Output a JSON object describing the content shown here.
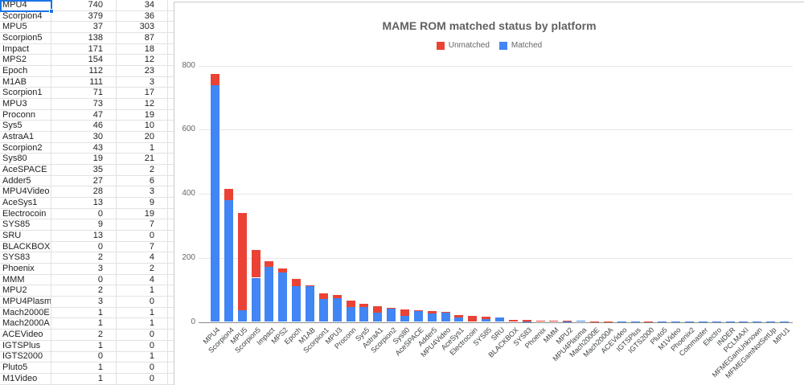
{
  "sheet": {
    "active_cell": "MPU4",
    "rows": [
      [
        "MPU4",
        740,
        34
      ],
      [
        "Scorpion4",
        379,
        36
      ],
      [
        "MPU5",
        37,
        303
      ],
      [
        "Scorpion5",
        138,
        87
      ],
      [
        "Impact",
        171,
        18
      ],
      [
        "MPS2",
        154,
        12
      ],
      [
        "Epoch",
        112,
        23
      ],
      [
        "M1AB",
        111,
        3
      ],
      [
        "Scorpion1",
        71,
        17
      ],
      [
        "MPU3",
        73,
        12
      ],
      [
        "Proconn",
        47,
        19
      ],
      [
        "Sys5",
        46,
        10
      ],
      [
        "AstraA1",
        30,
        20
      ],
      [
        "Scorpion2",
        43,
        1
      ],
      [
        "Sys80",
        19,
        21
      ],
      [
        "AceSPACE",
        35,
        2
      ],
      [
        "Adder5",
        27,
        6
      ],
      [
        "MPU4Video",
        28,
        3
      ],
      [
        "AceSys1",
        13,
        9
      ],
      [
        "Electrocoin",
        0,
        19
      ],
      [
        "SYS85",
        9,
        7
      ],
      [
        "SRU",
        13,
        0
      ],
      [
        "BLACKBOX",
        0,
        7
      ],
      [
        "SYS83",
        2,
        4
      ],
      [
        "Phoenix",
        3,
        2
      ],
      [
        "MMM",
        0,
        4
      ],
      [
        "MPU2",
        2,
        1
      ],
      [
        "MPU4Plasma",
        3,
        0
      ],
      [
        "Mach2000E",
        1,
        1
      ],
      [
        "Mach2000A",
        1,
        1
      ],
      [
        "ACEVideo",
        2,
        0
      ],
      [
        "IGTSPlus",
        1,
        0
      ],
      [
        "IGTS2000",
        0,
        1
      ],
      [
        "Pluto5",
        1,
        0
      ],
      [
        "M1Video",
        1,
        0
      ]
    ]
  },
  "chart_data": {
    "type": "bar",
    "stacked": true,
    "title": "MAME ROM matched status by platform",
    "legend_position": "top",
    "grid": true,
    "ylim": [
      0,
      800
    ],
    "yticks": [
      0,
      200,
      400,
      600,
      800
    ],
    "categories": [
      "MPU4",
      "Scorpion4",
      "MPU5",
      "Scorpion5",
      "Impact",
      "MPS2",
      "Epoch",
      "M1AB",
      "Scorpion1",
      "MPU3",
      "Proconn",
      "Sys5",
      "AstraA1",
      "Scorpion2",
      "Sys80",
      "AceSPACE",
      "Adder5",
      "MPU4Video",
      "AceSys1",
      "Electrocoin",
      "SYS85",
      "SRU",
      "BLACKBOX",
      "SYS83",
      "Phoenix",
      "MMM",
      "MPU2",
      "MPU4Plasma",
      "Mach2000E",
      "Mach2000A",
      "ACEVideo",
      "IGTSPlus",
      "IGTS2000",
      "Pluto5",
      "M1Video",
      "Phoenix2",
      "Coinmaster",
      "Electro",
      "INDER",
      "PCLMAXI",
      "MFMEGamUnknown",
      "MFMEGamNotSetUp",
      "MPU1"
    ],
    "series": [
      {
        "name": "Unmatched",
        "color": "#ea4335",
        "values": [
          34,
          36,
          303,
          87,
          18,
          12,
          23,
          3,
          17,
          12,
          19,
          10,
          20,
          1,
          21,
          2,
          6,
          3,
          9,
          19,
          7,
          0,
          7,
          4,
          2,
          4,
          1,
          0,
          1,
          1,
          0,
          0,
          1,
          0,
          0,
          0,
          0,
          0,
          0,
          0,
          0,
          0,
          0
        ]
      },
      {
        "name": "Matched",
        "color": "#4285f4",
        "values": [
          740,
          379,
          37,
          138,
          171,
          154,
          112,
          111,
          71,
          73,
          47,
          46,
          30,
          43,
          19,
          35,
          27,
          28,
          13,
          0,
          9,
          13,
          0,
          2,
          3,
          0,
          2,
          3,
          1,
          1,
          2,
          1,
          0,
          1,
          1,
          1,
          1,
          1,
          1,
          1,
          1,
          1,
          1
        ]
      }
    ]
  },
  "colors": {
    "selection": "#1a73e8",
    "gridline": "#e6e6e6",
    "sheet_line": "#e2e2e2"
  }
}
